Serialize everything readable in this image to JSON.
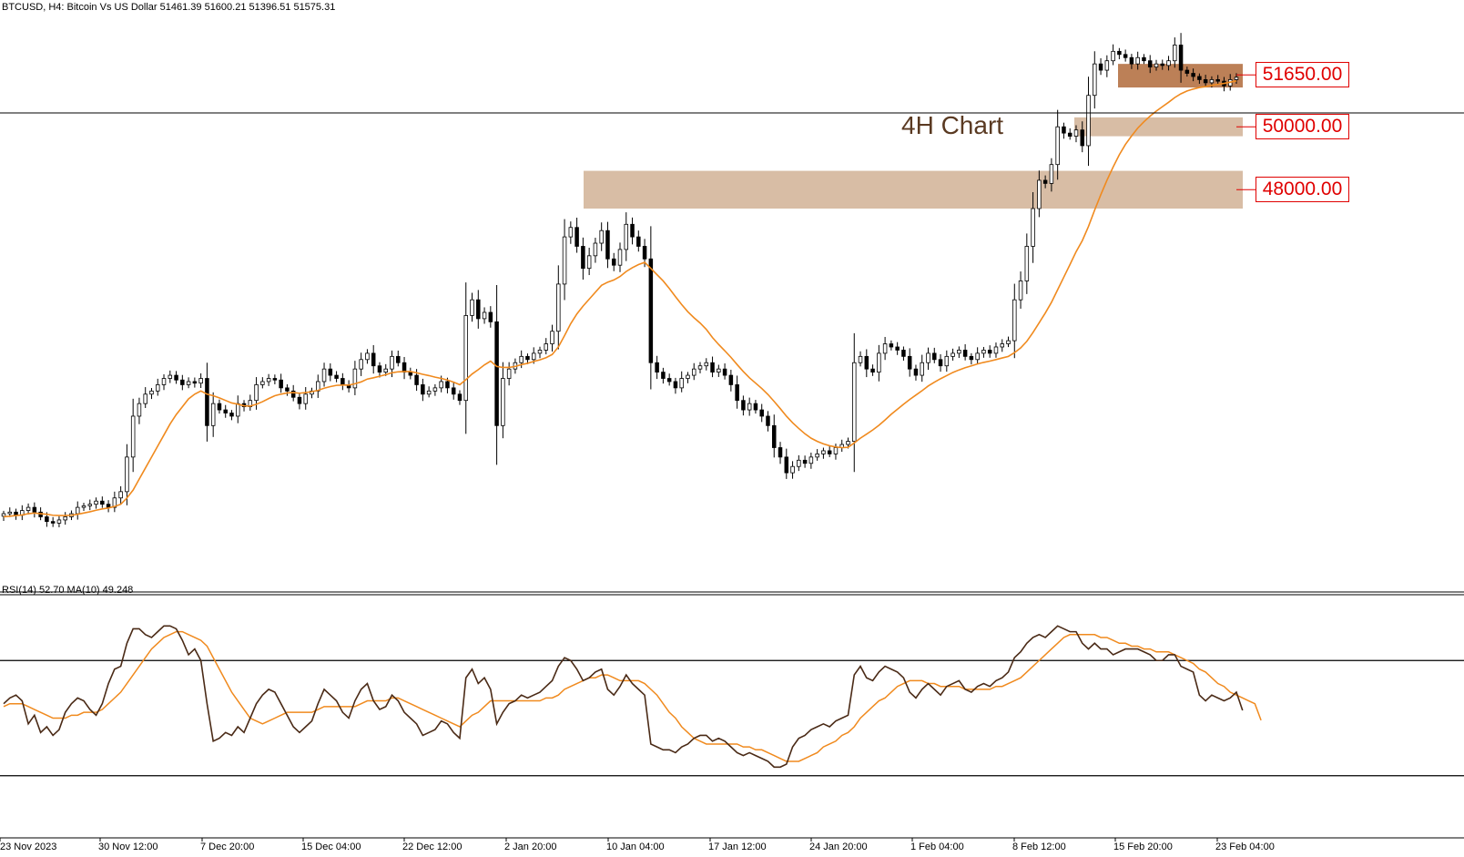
{
  "header": {
    "symbol": "BTCUSD, H4:",
    "description": "Bitcoin Vs US Dollar",
    "ohlc": "51461.39 51600.21 51396.51 51575.31"
  },
  "annotation": "4H Chart",
  "levels": [
    {
      "label": "51650.00",
      "value": 51650
    },
    {
      "label": "50000.00",
      "value": 50000
    },
    {
      "label": "48000.00",
      "value": 48000
    }
  ],
  "indicator_label": "RSI(14) 52.70 MA(10) 49.248",
  "x_ticks": [
    "23 Nov 2023",
    "30 Nov 12:00",
    "7 Dec 20:00",
    "15 Dec 04:00",
    "22 Dec 12:00",
    "2 Jan 20:00",
    "10 Jan 04:00",
    "17 Jan 12:00",
    "24 Jan 20:00",
    "1 Feb 04:00",
    "8 Feb 12:00",
    "15 Feb 20:00",
    "23 Feb 04:00"
  ],
  "colors": {
    "candle": "#000000",
    "ma": "#f08a1e",
    "rsi": "#4a2a16",
    "zone": "#d8bda5",
    "zone_dark": "#b06a3a",
    "level_text": "#e00000"
  },
  "chart_data": {
    "type": "candlestick",
    "symbol": "BTCUSD",
    "timeframe": "H4",
    "x_ticks": [
      "23 Nov 2023",
      "30 Nov 12:00",
      "7 Dec 20:00",
      "15 Dec 04:00",
      "22 Dec 12:00",
      "2 Jan 20:00",
      "10 Jan 04:00",
      "17 Jan 12:00",
      "24 Jan 20:00",
      "1 Feb 04:00",
      "8 Feb 12:00",
      "15 Feb 20:00",
      "23 Feb 04:00"
    ],
    "ylim": [
      35500,
      53800
    ],
    "close": [
      37700,
      37750,
      37650,
      37800,
      37900,
      37750,
      37600,
      37450,
      37400,
      37500,
      37600,
      37700,
      37900,
      37950,
      38000,
      38100,
      38000,
      37900,
      38200,
      38400,
      39500,
      40800,
      41200,
      41500,
      41600,
      41800,
      42000,
      42100,
      41950,
      41800,
      41900,
      41850,
      42000,
      40500,
      41200,
      41000,
      40900,
      40800,
      41200,
      41100,
      41300,
      41800,
      41900,
      42000,
      41950,
      41700,
      41600,
      41400,
      41200,
      41500,
      41600,
      41900,
      42300,
      42100,
      42000,
      41800,
      41700,
      42300,
      42600,
      42800,
      42400,
      42200,
      42300,
      42700,
      42500,
      42200,
      42100,
      41800,
      41500,
      41600,
      41700,
      41900,
      41700,
      41500,
      41300,
      44000,
      44500,
      43900,
      44100,
      43800,
      40500,
      42000,
      42300,
      42500,
      42700,
      42600,
      42800,
      42900,
      43100,
      43500,
      45000,
      46500,
      46800,
      46200,
      45500,
      45900,
      46300,
      46700,
      45800,
      45600,
      46100,
      46900,
      46500,
      46200,
      45800,
      42500,
      42200,
      42000,
      41900,
      41700,
      42000,
      42100,
      42300,
      42400,
      42500,
      42200,
      42300,
      42100,
      41800,
      41300,
      41000,
      41200,
      41000,
      40800,
      40500,
      39800,
      39500,
      39000,
      39200,
      39400,
      39300,
      39500,
      39600,
      39700,
      39600,
      39800,
      39900,
      40000,
      42500,
      42700,
      42300,
      42200,
      42800,
      43100,
      43000,
      42900,
      42700,
      42300,
      42100,
      42500,
      42800,
      42600,
      42400,
      42700,
      42800,
      42900,
      42700,
      42600,
      42800,
      42900,
      42800,
      43000,
      43100,
      43200,
      44500,
      45100,
      46200,
      47400,
      48300,
      48200,
      48800,
      50000,
      49800,
      49700,
      49900,
      49400,
      51000,
      52000,
      51800,
      52100,
      52400,
      52300,
      52200,
      52000,
      52200,
      52100,
      51900,
      52000,
      51950,
      52100,
      52600,
      51800,
      51700,
      51600,
      51500,
      51400,
      51500,
      51450,
      51300,
      51500,
      51575
    ],
    "ma_close": [
      37600,
      37620,
      37640,
      37660,
      37700,
      37720,
      37700,
      37680,
      37650,
      37640,
      37640,
      37650,
      37680,
      37720,
      37760,
      37810,
      37850,
      37880,
      37930,
      38000,
      38200,
      38450,
      38800,
      39150,
      39500,
      39850,
      40200,
      40550,
      40850,
      41100,
      41350,
      41500,
      41600,
      41500,
      41450,
      41380,
      41300,
      41220,
      41180,
      41130,
      41120,
      41180,
      41260,
      41360,
      41450,
      41500,
      41540,
      41550,
      41530,
      41550,
      41580,
      41620,
      41690,
      41740,
      41780,
      41790,
      41790,
      41830,
      41890,
      41980,
      42020,
      42070,
      42120,
      42180,
      42210,
      42220,
      42220,
      42180,
      42130,
      42090,
      42040,
      42000,
      41950,
      41880,
      41800,
      41960,
      42140,
      42280,
      42430,
      42550,
      42380,
      42350,
      42350,
      42380,
      42440,
      42480,
      42540,
      42590,
      42660,
      42760,
      43000,
      43360,
      43740,
      44050,
      44300,
      44520,
      44740,
      44960,
      45060,
      45130,
      45240,
      45400,
      45520,
      45620,
      45690,
      45500,
      45300,
      45100,
      44860,
      44600,
      44350,
      44120,
      43930,
      43760,
      43560,
      43300,
      43080,
      42880,
      42670,
      42440,
      42220,
      42020,
      41850,
      41680,
      41490,
      41270,
      41040,
      40800,
      40590,
      40410,
      40240,
      40100,
      40000,
      39920,
      39860,
      39820,
      39800,
      39810,
      39950,
      40100,
      40230,
      40360,
      40510,
      40680,
      40860,
      41020,
      41180,
      41330,
      41470,
      41610,
      41760,
      41880,
      41990,
      42090,
      42190,
      42270,
      42340,
      42400,
      42460,
      42510,
      42550,
      42600,
      42650,
      42700,
      42820,
      42970,
      43180,
      43460,
      43770,
      44080,
      44420,
      44820,
      45220,
      45620,
      46030,
      46380,
      46830,
      47350,
      47840,
      48300,
      48720,
      49110,
      49440,
      49710,
      49960,
      50160,
      50340,
      50500,
      50640,
      50780,
      50930,
      51050,
      51140,
      51200,
      51250,
      51280,
      51320,
      51350,
      51380,
      51420,
      51460
    ],
    "zones": [
      {
        "label": "51650.00",
        "low": 51250,
        "high": 52000
      },
      {
        "label": "50000.00",
        "low": 49700,
        "high": 50300
      },
      {
        "label": "48000.00",
        "low": 47400,
        "high": 48600
      }
    ],
    "indicator": {
      "name": "RSI",
      "label": "RSI(14) 52.70 MA(10) 49.248",
      "ylim": [
        10,
        90
      ],
      "levels": [
        70,
        30
      ],
      "rsi": [
        55,
        57,
        58,
        56,
        48,
        51,
        45,
        47,
        44,
        46,
        52,
        55,
        57,
        56,
        53,
        51,
        55,
        62,
        67,
        68,
        76,
        81,
        81,
        79,
        78,
        80,
        82,
        82,
        81,
        77,
        72,
        74,
        70,
        55,
        42,
        43,
        45,
        44,
        47,
        45,
        50,
        55,
        58,
        60,
        59,
        55,
        51,
        47,
        45,
        47,
        49,
        55,
        60,
        58,
        56,
        52,
        50,
        56,
        60,
        62,
        56,
        53,
        54,
        58,
        56,
        52,
        50,
        48,
        44,
        45,
        46,
        49,
        48,
        45,
        43,
        64,
        67,
        62,
        64,
        60,
        48,
        52,
        55,
        56,
        58,
        57,
        58,
        59,
        61,
        63,
        68,
        71,
        70,
        67,
        63,
        64,
        66,
        67,
        60,
        58,
        61,
        65,
        62,
        60,
        58,
        41,
        40,
        39,
        39,
        38,
        40,
        41,
        43,
        44,
        44,
        42,
        43,
        42,
        40,
        38,
        37,
        38,
        37,
        36,
        35,
        33,
        33,
        34,
        40,
        43,
        44,
        46,
        47,
        48,
        47,
        49,
        50,
        51,
        65,
        68,
        64,
        63,
        66,
        68,
        67,
        66,
        64,
        59,
        57,
        60,
        62,
        60,
        58,
        61,
        62,
        63,
        60,
        59,
        61,
        62,
        61,
        63,
        64,
        66,
        71,
        73,
        76,
        78,
        79,
        78,
        80,
        82,
        81,
        80,
        80,
        76,
        74,
        76,
        74,
        74,
        72,
        73,
        74,
        74,
        74,
        73,
        72,
        70,
        70,
        72,
        72,
        68,
        67,
        66,
        58,
        56,
        58,
        57,
        56,
        57,
        59,
        52.7
      ],
      "ma": [
        54,
        55,
        55,
        55,
        54,
        53,
        52,
        51,
        50,
        50,
        50,
        51,
        51,
        52,
        52,
        52,
        53,
        55,
        57,
        59,
        62,
        65,
        68,
        71,
        74,
        76,
        78,
        79,
        80,
        80,
        79,
        78,
        77,
        75,
        71,
        67,
        63,
        59,
        56,
        53,
        50,
        49,
        48,
        49,
        50,
        51,
        52,
        52,
        52,
        52,
        52,
        53,
        54,
        54,
        54,
        54,
        54,
        54,
        55,
        56,
        56,
        56,
        56,
        57,
        57,
        56,
        55,
        54,
        53,
        52,
        51,
        50,
        49,
        48,
        47,
        49,
        51,
        52,
        54,
        56,
        56,
        56,
        56,
        56,
        56,
        56,
        56,
        56,
        57,
        57,
        58,
        60,
        61,
        62,
        63,
        64,
        64,
        65,
        65,
        64,
        63,
        63,
        63,
        63,
        62,
        60,
        58,
        55,
        52,
        50,
        47,
        45,
        43,
        42,
        41,
        41,
        41,
        41,
        41,
        41,
        40,
        40,
        39,
        39,
        38,
        37,
        36,
        35,
        35,
        35,
        36,
        37,
        38,
        40,
        41,
        42,
        44,
        45,
        47,
        50,
        52,
        54,
        56,
        57,
        59,
        61,
        62,
        63,
        63,
        63,
        62,
        62,
        61,
        61,
        61,
        61,
        60,
        60,
        60,
        60,
        60,
        61,
        61,
        62,
        63,
        64,
        66,
        68,
        70,
        72,
        74,
        76,
        78,
        79,
        79,
        79,
        79,
        79,
        78,
        78,
        77,
        76,
        76,
        75,
        75,
        74,
        74,
        73,
        73,
        73,
        72,
        71,
        70,
        69,
        67,
        66,
        64,
        62,
        61,
        59,
        58,
        57,
        56,
        55,
        49.248
      ]
    }
  }
}
